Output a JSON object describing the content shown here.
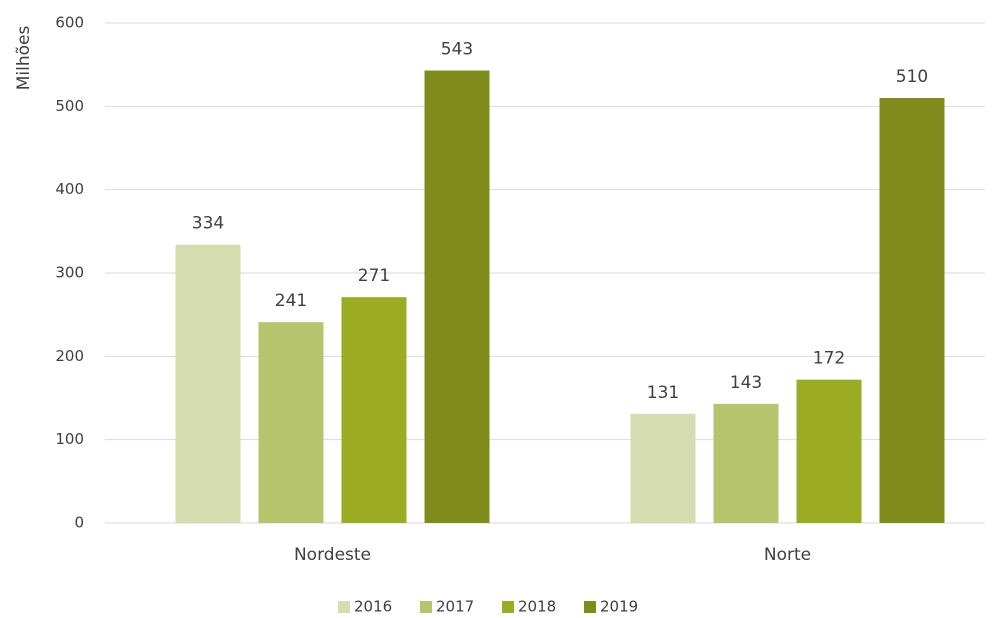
{
  "chart_data": {
    "type": "bar",
    "y_label": "Milhões",
    "categories": [
      "Nordeste",
      "Norte"
    ],
    "series": [
      {
        "name": "2016",
        "color": "#d4dcb0",
        "values": [
          334,
          131
        ]
      },
      {
        "name": "2017",
        "color": "#b5c46d",
        "values": [
          241,
          143
        ]
      },
      {
        "name": "2018",
        "color": "#9bab24",
        "values": [
          271,
          172
        ]
      },
      {
        "name": "2019",
        "color": "#7f8c1c",
        "values": [
          543,
          510
        ]
      }
    ],
    "ylim": [
      0,
      600
    ],
    "yticks": [
      0,
      100,
      200,
      300,
      400,
      500,
      600
    ],
    "grid": true,
    "legend": "bottom"
  }
}
